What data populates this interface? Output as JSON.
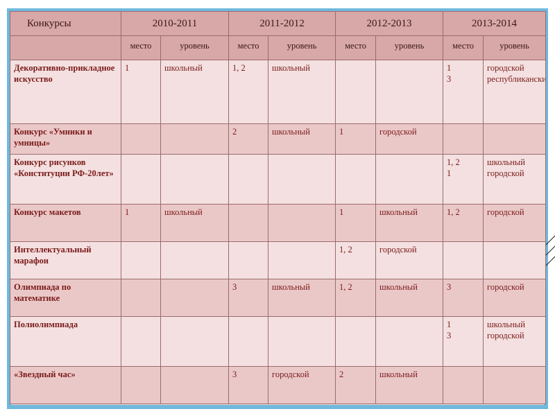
{
  "header": {
    "contests_label": "Конкурсы",
    "years": [
      "2010-2011",
      "2011-2012",
      "2012-2013",
      "2013-2014"
    ],
    "place_label": "место",
    "level_label": "уровень"
  },
  "rows": [
    {
      "name": "Декоративно-прикладное искусство",
      "cells": [
        "1",
        "школьный",
        "1, 2",
        "школьный",
        "",
        "",
        "1\n3",
        "городской республиканский"
      ]
    },
    {
      "name": "Конкурс «Умники и умницы»",
      "cells": [
        "",
        "",
        "2",
        "школьный",
        "1",
        "городской",
        "",
        ""
      ]
    },
    {
      "name": "Конкурс рисунков «Конституции РФ-20лет»",
      "cells": [
        "",
        "",
        "",
        "",
        "",
        "",
        "1, 2\n1",
        "школьный городской"
      ]
    },
    {
      "name": "Конкурс макетов",
      "cells": [
        "1",
        "школьный",
        "",
        "",
        "1",
        "школьный",
        "1, 2",
        "городской"
      ]
    },
    {
      "name": "Интеллектуальный марафон",
      "cells": [
        "",
        "",
        "",
        "",
        "1, 2",
        "городской",
        "",
        ""
      ]
    },
    {
      "name": "Олимпиада по математике",
      "cells": [
        "",
        "",
        "3",
        "школьный",
        "1, 2",
        "школьный",
        "3",
        "городской"
      ]
    },
    {
      "name": "Полиолимпиада",
      "cells": [
        "",
        "",
        "",
        "",
        "",
        "",
        "1\n3",
        "школьный городской"
      ]
    },
    {
      "name": "«Звездный час»",
      "cells": [
        "",
        "",
        "3",
        "городской",
        "2",
        "школьный",
        "",
        ""
      ]
    }
  ]
}
